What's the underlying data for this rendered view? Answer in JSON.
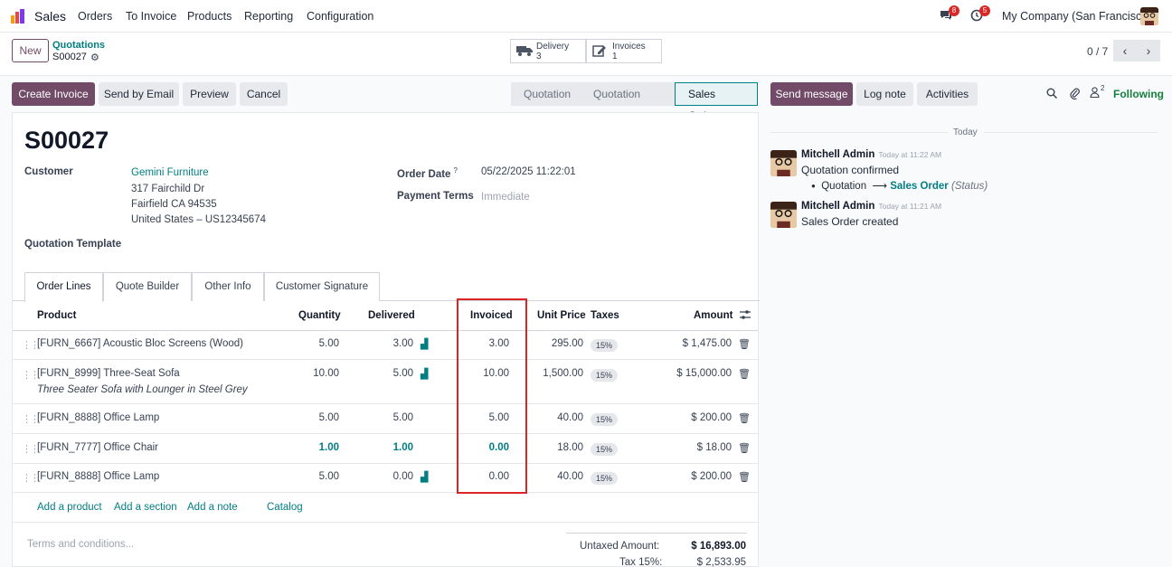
{
  "navbar": {
    "app_name": "Sales",
    "menu": [
      "Orders",
      "To Invoice",
      "Products",
      "Reporting",
      "Configuration"
    ],
    "messages_count": "8",
    "activities_count": "5",
    "company": "My Company (San Francisco)"
  },
  "control": {
    "new_label": "New",
    "breadcrumb": "Quotations",
    "record_name": "S00027",
    "smart_buttons": [
      {
        "label": "Delivery",
        "value": "3"
      },
      {
        "label": "Invoices",
        "value": "1"
      }
    ],
    "pager": "0 / 7"
  },
  "actions": {
    "create_invoice": "Create Invoice",
    "send_email": "Send by Email",
    "preview": "Preview",
    "cancel": "Cancel"
  },
  "statusbar": [
    "Quotation",
    "Quotation Sent",
    "Sales Order"
  ],
  "form": {
    "title": "S00027",
    "customer_label": "Customer",
    "customer_name": "Gemini Furniture",
    "address": [
      "317 Fairchild Dr",
      "Fairfield CA 94535",
      "United States – US12345674"
    ],
    "order_date_label": "Order Date",
    "order_date_help": "?",
    "order_date": "05/22/2025 11:22:01",
    "payment_terms_label": "Payment Terms",
    "payment_terms": "Immediate",
    "quotation_template_label": "Quotation Template"
  },
  "tabs": [
    "Order Lines",
    "Quote Builder",
    "Other Info",
    "Customer Signature"
  ],
  "table": {
    "headers": {
      "product": "Product",
      "quantity": "Quantity",
      "delivered": "Delivered",
      "invoiced": "Invoiced",
      "unit_price": "Unit Price",
      "taxes": "Taxes",
      "amount": "Amount"
    },
    "rows": [
      {
        "product": "[FURN_6667] Acoustic Bloc Screens (Wood)",
        "description": "",
        "quantity": "5.00",
        "delivered": "3.00",
        "invoiced": "3.00",
        "unit_price": "295.00",
        "tax": "15%",
        "amount": "$ 1,475.00"
      },
      {
        "product": "[FURN_8999] Three-Seat Sofa",
        "description": "Three Seater Sofa with Lounger in Steel Grey",
        "quantity": "10.00",
        "delivered": "5.00",
        "invoiced": "10.00",
        "unit_price": "1,500.00",
        "tax": "15%",
        "amount": "$ 15,000.00"
      },
      {
        "product": "[FURN_8888] Office Lamp",
        "description": "",
        "quantity": "5.00",
        "delivered": "5.00",
        "invoiced": "5.00",
        "unit_price": "40.00",
        "tax": "15%",
        "amount": "$ 200.00"
      },
      {
        "product": "[FURN_7777] Office Chair",
        "description": "",
        "quantity": "1.00",
        "delivered": "1.00",
        "invoiced": "0.00",
        "unit_price": "18.00",
        "tax": "15%",
        "amount": "$ 18.00"
      },
      {
        "product": "[FURN_8888] Office Lamp",
        "description": "",
        "quantity": "5.00",
        "delivered": "0.00",
        "invoiced": "0.00",
        "unit_price": "40.00",
        "tax": "15%",
        "amount": "$ 200.00"
      }
    ],
    "add_product": "Add a product",
    "add_section": "Add a section",
    "add_note": "Add a note",
    "catalog": "Catalog",
    "terms_placeholder": "Terms and conditions...",
    "untaxed_label": "Untaxed Amount:",
    "untaxed_value": "$ 16,893.00",
    "tax_label": "Tax 15%:",
    "tax_value": "$ 2,533.95"
  },
  "chatter": {
    "send_message": "Send message",
    "log_note": "Log note",
    "activities": "Activities",
    "followers_count": "2",
    "following": "Following",
    "today": "Today",
    "messages": [
      {
        "author": "Mitchell Admin",
        "time": "Today at 11:22 AM",
        "body": "Quotation confirmed",
        "change_from": "Quotation",
        "change_to": "Sales Order",
        "change_field": "(Status)"
      },
      {
        "author": "Mitchell Admin",
        "time": "Today at 11:21 AM",
        "body": "Sales Order created"
      }
    ]
  }
}
